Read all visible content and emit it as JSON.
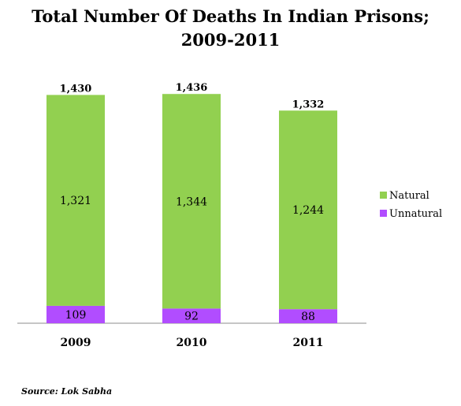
{
  "colors": {
    "natural": "#92d050",
    "unnatural": "#b14dff",
    "axis": "#8c8c8c"
  },
  "source": "Source: Lok Sabha",
  "chart_data": {
    "type": "bar",
    "stacked": true,
    "title": "Total Number Of Deaths In Indian Prisons;",
    "subtitle": "2009-2011",
    "categories": [
      "2009",
      "2010",
      "2011"
    ],
    "series": [
      {
        "name": "Natural",
        "values": [
          1321,
          1344,
          1244
        ]
      },
      {
        "name": "Unnatural",
        "values": [
          109,
          92,
          88
        ]
      }
    ],
    "totals_labels": [
      "1,430",
      "1,436",
      "1,332"
    ],
    "natural_labels": [
      "1,321",
      "1,344",
      "1,244"
    ],
    "unnatural_labels": [
      "109",
      "92",
      "88"
    ],
    "totals": [
      1430,
      1436,
      1332
    ],
    "xlabel": "",
    "ylabel": "",
    "grid": false,
    "legend": "right"
  }
}
